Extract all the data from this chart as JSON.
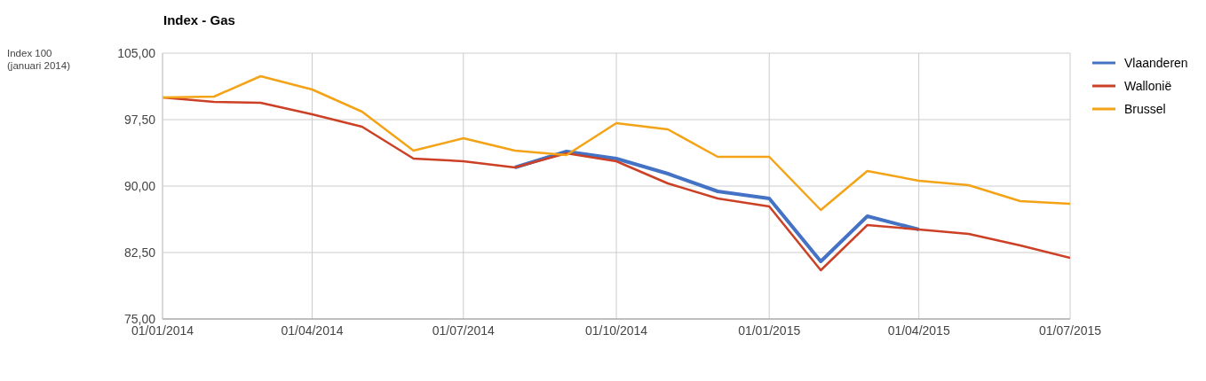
{
  "chart_data": {
    "type": "line",
    "title": "Index - Gas",
    "ylabel": "Index 100 (januari 2014)",
    "x": [
      "2014-01",
      "2014-02",
      "2014-03",
      "2014-04",
      "2014-05",
      "2014-06",
      "2014-07",
      "2014-08",
      "2014-09",
      "2014-10",
      "2014-11",
      "2014-12",
      "2015-01",
      "2015-02",
      "2015-03",
      "2015-04",
      "2015-05",
      "2015-06",
      "2015-07"
    ],
    "series": [
      {
        "name": "Vlaanderen",
        "color": "#4472c4",
        "values": [
          null,
          null,
          null,
          null,
          null,
          null,
          null,
          92.1,
          93.9,
          93.1,
          91.4,
          89.4,
          88.6,
          81.5,
          86.6,
          85.1,
          null,
          null,
          null
        ]
      },
      {
        "name": "Wallonië",
        "color": "#cc4125",
        "values": [
          100,
          99.5,
          99.4,
          98.1,
          96.7,
          93.1,
          92.8,
          92.1,
          93.7,
          92.8,
          90.3,
          88.6,
          87.7,
          80.5,
          85.6,
          85.1,
          84.6,
          83.3,
          81.9
        ]
      },
      {
        "name": "Brussel",
        "color": "#f4a316",
        "values": [
          100,
          100.1,
          102.4,
          100.9,
          98.4,
          94.0,
          95.4,
          94.0,
          93.5,
          97.1,
          96.4,
          93.3,
          93.3,
          87.3,
          91.7,
          90.6,
          90.1,
          88.3,
          88.0
        ]
      }
    ],
    "xlim": [
      "2014-01",
      "2015-07"
    ],
    "xticks": [
      {
        "value": "2014-01",
        "label": "01/01/2014"
      },
      {
        "value": "2014-04",
        "label": "01/04/2014"
      },
      {
        "value": "2014-07",
        "label": "01/07/2014"
      },
      {
        "value": "2014-10",
        "label": "01/10/2014"
      },
      {
        "value": "2015-01",
        "label": "01/01/2015"
      },
      {
        "value": "2015-04",
        "label": "01/04/2015"
      },
      {
        "value": "2015-07",
        "label": "01/07/2015"
      }
    ],
    "ylim": [
      75,
      105
    ],
    "yticks": [
      {
        "value": 75,
        "label": "75,00"
      },
      {
        "value": 82.5,
        "label": "82,50"
      },
      {
        "value": 90,
        "label": "90,00"
      },
      {
        "value": 97.5,
        "label": "97,50"
      },
      {
        "value": 105,
        "label": "105,00"
      }
    ],
    "grid": true,
    "legend": "right",
    "marker": "none",
    "line_style": "solid"
  }
}
